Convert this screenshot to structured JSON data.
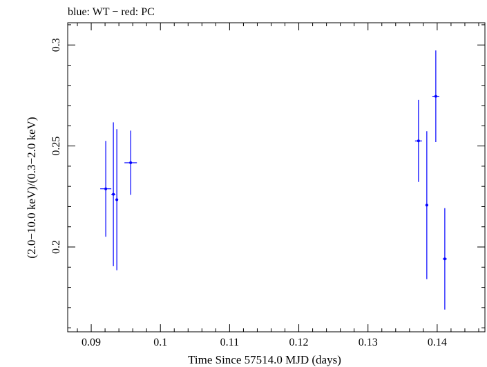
{
  "chart_data": {
    "type": "scatter",
    "title": "blue: WT − red: PC",
    "xlabel": "Time Since 57514.0 MJD (days)",
    "ylabel": "(2.0−10.0 keV)/(0.3−2.0 keV)",
    "xlim": [
      0.0866,
      0.1469
    ],
    "ylim": [
      0.158,
      0.311
    ],
    "x_ticks": [
      {
        "value": 0.09,
        "label": "0.09"
      },
      {
        "value": 0.1,
        "label": "0.1"
      },
      {
        "value": 0.11,
        "label": "0.11"
      },
      {
        "value": 0.12,
        "label": "0.12"
      },
      {
        "value": 0.13,
        "label": "0.13"
      },
      {
        "value": 0.14,
        "label": "0.14"
      }
    ],
    "y_ticks": [
      {
        "value": 0.2,
        "label": "0.2"
      },
      {
        "value": 0.25,
        "label": "0.25"
      },
      {
        "value": 0.3,
        "label": "0.3"
      }
    ],
    "grid": false,
    "series": [
      {
        "name": "WT",
        "color": "#0000ff",
        "points": [
          {
            "x": 0.0921,
            "y": 0.2288,
            "xerr": 0.0008,
            "yerr_low": 0.0237,
            "yerr_high": 0.0237
          },
          {
            "x": 0.0932,
            "y": 0.2261,
            "xerr": 0.0003,
            "yerr_low": 0.0356,
            "yerr_high": 0.0356
          },
          {
            "x": 0.0937,
            "y": 0.2234,
            "xerr": 0.0002,
            "yerr_low": 0.0349,
            "yerr_high": 0.0349
          },
          {
            "x": 0.0957,
            "y": 0.2417,
            "xerr": 0.0009,
            "yerr_low": 0.0159,
            "yerr_high": 0.0159
          },
          {
            "x": 0.1373,
            "y": 0.2525,
            "xerr": 0.0005,
            "yerr_low": 0.0203,
            "yerr_high": 0.0203
          },
          {
            "x": 0.1385,
            "y": 0.2207,
            "xerr": 0.0002,
            "yerr_low": 0.0366,
            "yerr_high": 0.0366
          },
          {
            "x": 0.1398,
            "y": 0.2746,
            "xerr": 0.0005,
            "yerr_low": 0.0227,
            "yerr_high": 0.0227
          },
          {
            "x": 0.1411,
            "y": 0.1941,
            "xerr": 0.0003,
            "yerr_low": 0.0251,
            "yerr_high": 0.0251
          }
        ]
      }
    ]
  }
}
